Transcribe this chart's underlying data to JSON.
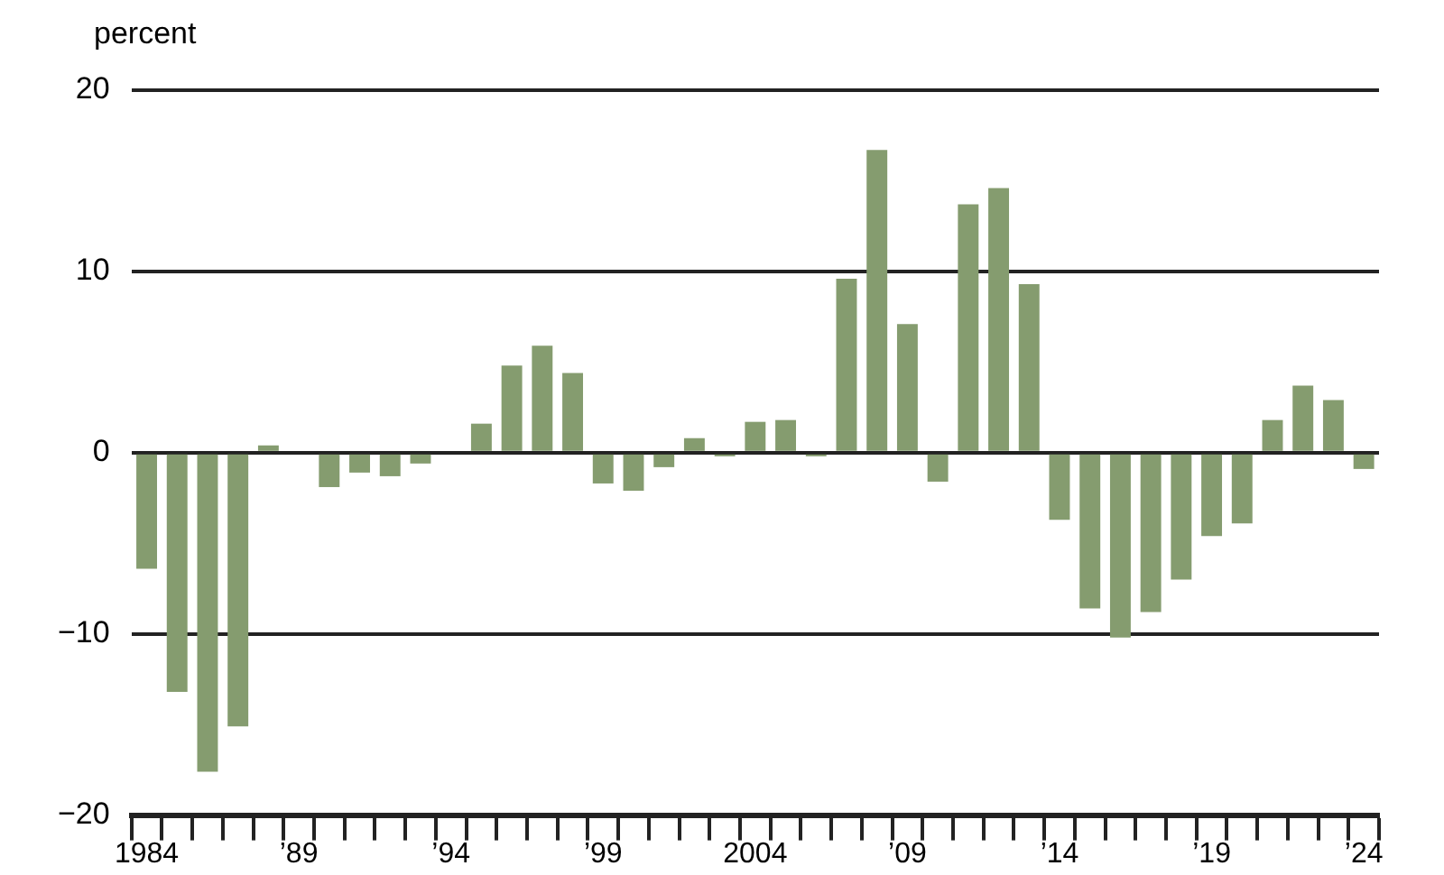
{
  "chart_data": {
    "type": "bar",
    "ylabel": "percent",
    "categories": [
      "1984",
      null,
      null,
      null,
      null,
      "’89",
      null,
      null,
      null,
      null,
      "’94",
      null,
      null,
      null,
      null,
      "’99",
      null,
      null,
      null,
      null,
      "2004",
      null,
      null,
      null,
      null,
      "’09",
      null,
      null,
      null,
      null,
      "’14",
      null,
      null,
      null,
      null,
      "’19",
      null,
      null,
      null,
      null,
      "’24"
    ],
    "values": [
      -6.4,
      -13.2,
      -17.6,
      -15.1,
      0.4,
      0,
      -1.9,
      -1.1,
      -1.3,
      -0.6,
      0,
      1.6,
      4.8,
      5.9,
      4.4,
      -1.7,
      -2.1,
      -0.8,
      0.8,
      -0.2,
      1.7,
      1.8,
      -0.2,
      9.6,
      16.7,
      7.1,
      -1.6,
      13.7,
      14.6,
      9.3,
      -3.7,
      -8.6,
      -10.2,
      -8.8,
      -7.0,
      -4.6,
      -3.9,
      1.8,
      3.7,
      2.9,
      -0.9
    ],
    "color": "#859c6f",
    "ylim": [
      -20,
      20
    ],
    "yticks": [
      {
        "value": -20,
        "label": "−20"
      },
      {
        "value": -10,
        "label": "−10"
      },
      0,
      10,
      20
    ],
    "grid": "y",
    "legend": false
  }
}
